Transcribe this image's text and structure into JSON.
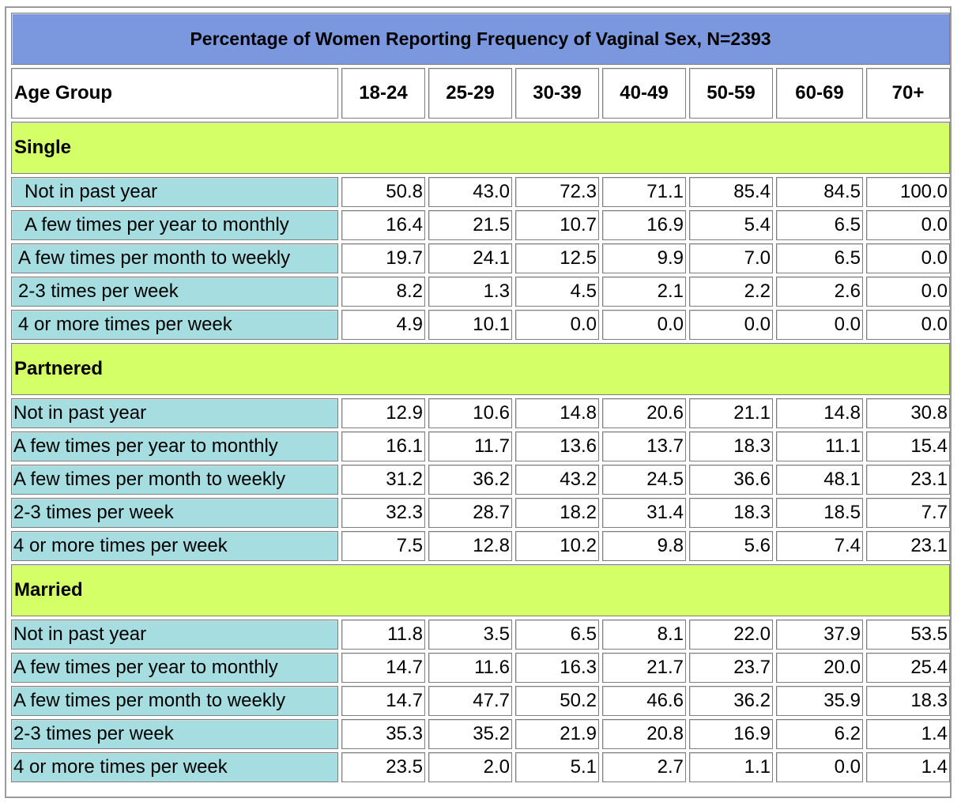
{
  "chart_data": {
    "type": "table",
    "title": "Percentage of Women Reporting Frequency of Vaginal Sex, N=2393",
    "header_label": "Age Group",
    "columns": [
      "18-24",
      "25-29",
      "30-39",
      "40-49",
      "50-59",
      "60-69",
      "70+"
    ],
    "sections": [
      {
        "name": "Single",
        "rows": [
          {
            "label": "Not in past year",
            "values": [
              "50.8",
              "43.0",
              "72.3",
              "71.1",
              "85.4",
              "84.5",
              "100.0"
            ]
          },
          {
            "label": "A few times per year to monthly",
            "values": [
              "16.4",
              "21.5",
              "10.7",
              "16.9",
              "5.4",
              "6.5",
              "0.0"
            ]
          },
          {
            "label": "A few times per month to weekly",
            "values": [
              "19.7",
              "24.1",
              "12.5",
              "9.9",
              "7.0",
              "6.5",
              "0.0"
            ]
          },
          {
            "label": "2-3 times per week",
            "values": [
              "8.2",
              "1.3",
              "4.5",
              "2.1",
              "2.2",
              "2.6",
              "0.0"
            ]
          },
          {
            "label": "4 or more times per week",
            "values": [
              "4.9",
              "10.1",
              "0.0",
              "0.0",
              "0.0",
              "0.0",
              "0.0"
            ]
          }
        ]
      },
      {
        "name": "Partnered",
        "rows": [
          {
            "label": "Not in past year",
            "values": [
              "12.9",
              "10.6",
              "14.8",
              "20.6",
              "21.1",
              "14.8",
              "30.8"
            ]
          },
          {
            "label": "A few times per year to monthly",
            "values": [
              "16.1",
              "11.7",
              "13.6",
              "13.7",
              "18.3",
              "11.1",
              "15.4"
            ]
          },
          {
            "label": "A few times per month to weekly",
            "values": [
              "31.2",
              "36.2",
              "43.2",
              "24.5",
              "36.6",
              "48.1",
              "23.1"
            ]
          },
          {
            "label": "2-3 times per week",
            "values": [
              "32.3",
              "28.7",
              "18.2",
              "31.4",
              "18.3",
              "18.5",
              "7.7"
            ]
          },
          {
            "label": "4 or more times per week",
            "values": [
              "7.5",
              "12.8",
              "10.2",
              "9.8",
              "5.6",
              "7.4",
              "23.1"
            ]
          }
        ]
      },
      {
        "name": "Married",
        "rows": [
          {
            "label": "Not in past year",
            "values": [
              "11.8",
              "3.5",
              "6.5",
              "8.1",
              "22.0",
              "37.9",
              "53.5"
            ]
          },
          {
            "label": "A few times per year to monthly",
            "values": [
              "14.7",
              "11.6",
              "16.3",
              "21.7",
              "23.7",
              "20.0",
              "25.4"
            ]
          },
          {
            "label": "A few times per month to weekly",
            "values": [
              "14.7",
              "47.7",
              "50.2",
              "46.6",
              "36.2",
              "35.9",
              "18.3"
            ]
          },
          {
            "label": "2-3 times per week",
            "values": [
              "35.3",
              "35.2",
              "21.9",
              "20.8",
              "16.9",
              "6.2",
              "1.4"
            ]
          },
          {
            "label": "4 or more times per week",
            "values": [
              "23.5",
              "2.0",
              "5.1",
              "2.7",
              "1.1",
              "0.0",
              "1.4"
            ]
          }
        ]
      }
    ]
  },
  "colors": {
    "title_bg": "#7b98de",
    "section_bg": "#d4ff66",
    "label_bg": "#a6dde1",
    "value_bg": "#ffffff"
  }
}
